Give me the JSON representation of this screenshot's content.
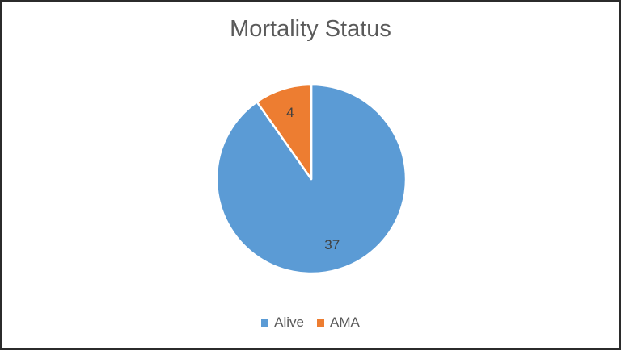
{
  "chart_data": {
    "type": "pie",
    "title": "Mortality Status",
    "categories": [
      "Alive",
      "AMA"
    ],
    "values": [
      37,
      4
    ],
    "data_labels": [
      "37",
      "4"
    ],
    "colors": [
      "#5b9bd5",
      "#ed7d31"
    ],
    "legend_position": "bottom",
    "start_angle_deg": 0,
    "direction": "clockwise-from-top"
  }
}
